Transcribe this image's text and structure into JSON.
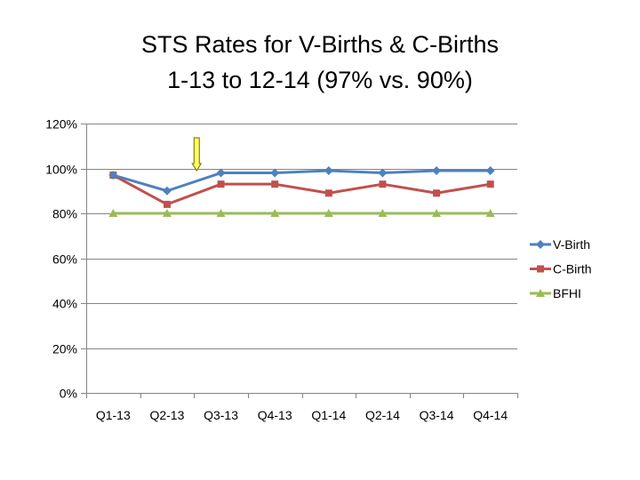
{
  "chart_data": {
    "type": "line",
    "title": "STS Rates for V-Births & C-Births",
    "subtitle": "1-13 to 12-14 (97% vs. 90%)",
    "xlabel": "",
    "ylabel": "",
    "categories": [
      "Q1-13",
      "Q2-13",
      "Q3-13",
      "Q4-13",
      "Q1-14",
      "Q2-14",
      "Q3-14",
      "Q4-14"
    ],
    "ylim": [
      0,
      120
    ],
    "yticks": [
      0,
      20,
      40,
      60,
      80,
      100,
      120
    ],
    "ytick_labels": [
      "0%",
      "20%",
      "40%",
      "60%",
      "80%",
      "100%",
      "120%"
    ],
    "legend_position": "right",
    "series": [
      {
        "name": "V-Birth",
        "color": "#4F81BD",
        "marker": "diamond",
        "values": [
          97,
          90,
          98,
          98,
          99,
          98,
          99,
          99
        ]
      },
      {
        "name": "C-Birth",
        "color": "#C0504D",
        "marker": "square",
        "values": [
          97,
          84,
          93,
          93,
          89,
          93,
          89,
          93
        ]
      },
      {
        "name": "BFHI",
        "color": "#9BBB59",
        "marker": "triangle",
        "values": [
          80,
          80,
          80,
          80,
          80,
          80,
          80,
          80
        ]
      }
    ],
    "annotations": [
      {
        "type": "arrow",
        "color": "#FFFF66",
        "at_category": "Q2-13",
        "pointing": "down"
      }
    ]
  }
}
